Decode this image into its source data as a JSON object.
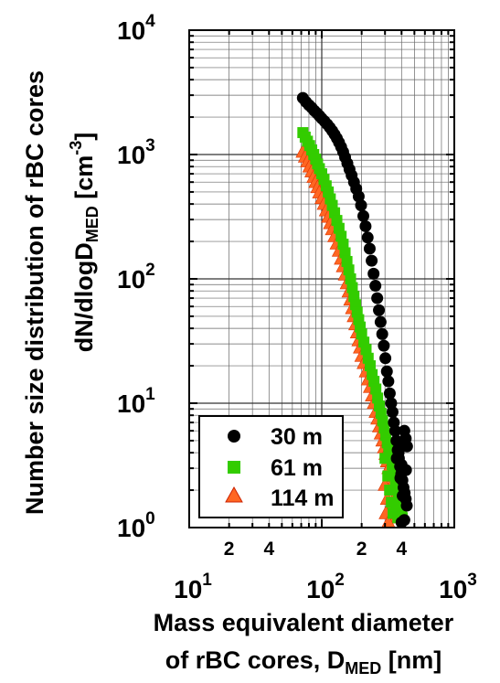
{
  "chart_data": {
    "type": "scatter",
    "xlabel": {
      "line1": "Mass equivalent diameter",
      "line2_prefix": "of rBC cores, D",
      "line2_sub": "MED",
      "line2_suffix": " [nm]"
    },
    "ylabel": {
      "line1": "Number size distribution of rBC cores",
      "line2_prefix": "dN/dlogD",
      "line2_sub": "MED",
      "line2_suffix": " [cm",
      "line2_sup": "-3",
      "line2_end": "]"
    },
    "x_scale": "log",
    "y_scale": "log",
    "xlim": [
      10,
      1000
    ],
    "ylim": [
      1,
      10000
    ],
    "x_major_ticks": [
      {
        "base": "10",
        "exp": "1"
      },
      {
        "base": "10",
        "exp": "2"
      },
      {
        "base": "10",
        "exp": "3"
      }
    ],
    "x_minor_labels": [
      "2",
      "4",
      "2",
      "4"
    ],
    "y_major_ticks": [
      {
        "base": "10",
        "exp": "0"
      },
      {
        "base": "10",
        "exp": "1"
      },
      {
        "base": "10",
        "exp": "2"
      },
      {
        "base": "10",
        "exp": "3"
      },
      {
        "base": "10",
        "exp": "4"
      }
    ],
    "grid": true,
    "legend_position": "bottom-left",
    "series": [
      {
        "name": "30 m",
        "marker": "circle",
        "color": "#000000",
        "points": [
          [
            72,
            2850
          ],
          [
            76,
            2650
          ],
          [
            80,
            2500
          ],
          [
            84,
            2380
          ],
          [
            88,
            2250
          ],
          [
            92,
            2150
          ],
          [
            96,
            2050
          ],
          [
            100,
            1950
          ],
          [
            105,
            1850
          ],
          [
            110,
            1750
          ],
          [
            115,
            1650
          ],
          [
            120,
            1550
          ],
          [
            125,
            1450
          ],
          [
            130,
            1350
          ],
          [
            135,
            1250
          ],
          [
            140,
            1150
          ],
          [
            145,
            1050
          ],
          [
            150,
            950
          ],
          [
            156,
            850
          ],
          [
            162,
            760
          ],
          [
            168,
            680
          ],
          [
            175,
            600
          ],
          [
            182,
            530
          ],
          [
            190,
            460
          ],
          [
            198,
            390
          ],
          [
            206,
            320
          ],
          [
            214,
            265
          ],
          [
            222,
            215
          ],
          [
            230,
            175
          ],
          [
            238,
            140
          ],
          [
            246,
            110
          ],
          [
            254,
            88
          ],
          [
            262,
            70
          ],
          [
            270,
            56
          ],
          [
            278,
            45
          ],
          [
            286,
            36
          ],
          [
            294,
            29
          ],
          [
            302,
            23
          ],
          [
            310,
            18
          ],
          [
            318,
            15
          ],
          [
            326,
            12
          ],
          [
            334,
            10
          ],
          [
            342,
            8.5
          ],
          [
            350,
            7.0
          ],
          [
            358,
            6.0
          ],
          [
            366,
            5.0
          ],
          [
            374,
            4.2
          ],
          [
            382,
            3.6
          ],
          [
            390,
            3.1
          ],
          [
            398,
            2.7
          ],
          [
            406,
            2.4
          ],
          [
            414,
            2.1
          ],
          [
            422,
            1.9
          ],
          [
            430,
            1.7
          ],
          [
            438,
            1.5
          ],
          [
            368,
            3.6
          ],
          [
            380,
            4.0
          ],
          [
            392,
            2.5
          ],
          [
            400,
            3.2
          ],
          [
            410,
            4.6
          ],
          [
            420,
            6.0
          ],
          [
            430,
            5.2
          ],
          [
            440,
            4.5
          ],
          [
            400,
            1.1
          ],
          [
            420,
            1.15
          ],
          [
            408,
            1.8
          ],
          [
            432,
            2.9
          ]
        ]
      },
      {
        "name": "61 m",
        "marker": "square",
        "color": "#33cc00",
        "points": [
          [
            72,
            1500
          ],
          [
            75,
            1380
          ],
          [
            78,
            1280
          ],
          [
            81,
            1180
          ],
          [
            84,
            1090
          ],
          [
            87,
            1000
          ],
          [
            90,
            920
          ],
          [
            93,
            840
          ],
          [
            96,
            770
          ],
          [
            100,
            700
          ],
          [
            104,
            630
          ],
          [
            108,
            560
          ],
          [
            112,
            500
          ],
          [
            116,
            440
          ],
          [
            120,
            390
          ],
          [
            125,
            340
          ],
          [
            130,
            295
          ],
          [
            135,
            255
          ],
          [
            140,
            220
          ],
          [
            145,
            190
          ],
          [
            150,
            162
          ],
          [
            155,
            138
          ],
          [
            160,
            118
          ],
          [
            165,
            100
          ],
          [
            170,
            85
          ],
          [
            175,
            72
          ],
          [
            180,
            62
          ],
          [
            185,
            54
          ],
          [
            190,
            47
          ],
          [
            195,
            41
          ],
          [
            200,
            36
          ],
          [
            208,
            31
          ],
          [
            216,
            27
          ],
          [
            224,
            23
          ],
          [
            232,
            20
          ],
          [
            240,
            17
          ],
          [
            248,
            15
          ],
          [
            256,
            13
          ],
          [
            264,
            11
          ],
          [
            272,
            9.5
          ],
          [
            280,
            8.3
          ],
          [
            288,
            7.2
          ],
          [
            296,
            6.3
          ],
          [
            304,
            5.5
          ],
          [
            312,
            4.8
          ],
          [
            320,
            4.2
          ],
          [
            330,
            3.7
          ],
          [
            340,
            3.2
          ],
          [
            350,
            2.8
          ],
          [
            360,
            2.4
          ],
          [
            370,
            2.1
          ],
          [
            380,
            1.8
          ],
          [
            390,
            1.6
          ],
          [
            400,
            1.4
          ],
          [
            300,
            3.6
          ],
          [
            315,
            2.6
          ],
          [
            325,
            2.0
          ],
          [
            335,
            1.6
          ],
          [
            345,
            1.3
          ],
          [
            360,
            1.5
          ],
          [
            375,
            1.2
          ],
          [
            385,
            2.2
          ],
          [
            405,
            1.2
          ]
        ]
      },
      {
        "name": "114 m",
        "marker": "triangle",
        "color": "#ff6622",
        "points": [
          [
            72,
            1050
          ],
          [
            75,
            960
          ],
          [
            78,
            880
          ],
          [
            81,
            800
          ],
          [
            84,
            730
          ],
          [
            87,
            660
          ],
          [
            90,
            600
          ],
          [
            93,
            545
          ],
          [
            96,
            495
          ],
          [
            100,
            445
          ],
          [
            104,
            400
          ],
          [
            108,
            355
          ],
          [
            112,
            315
          ],
          [
            116,
            280
          ],
          [
            120,
            250
          ],
          [
            125,
            220
          ],
          [
            130,
            192
          ],
          [
            135,
            168
          ],
          [
            140,
            145
          ],
          [
            145,
            126
          ],
          [
            150,
            108
          ],
          [
            155,
            92
          ],
          [
            160,
            79
          ],
          [
            165,
            68
          ],
          [
            170,
            58
          ],
          [
            175,
            50
          ],
          [
            180,
            43
          ],
          [
            185,
            37
          ],
          [
            190,
            32
          ],
          [
            195,
            28
          ],
          [
            200,
            24
          ],
          [
            208,
            21
          ],
          [
            216,
            18
          ],
          [
            224,
            15.5
          ],
          [
            232,
            13.5
          ],
          [
            240,
            11.5
          ],
          [
            248,
            10
          ],
          [
            256,
            8.5
          ],
          [
            264,
            7.5
          ],
          [
            272,
            6.5
          ],
          [
            280,
            5.7
          ],
          [
            288,
            5.0
          ],
          [
            296,
            4.4
          ],
          [
            304,
            3.9
          ],
          [
            312,
            3.4
          ],
          [
            320,
            3.0
          ],
          [
            330,
            2.6
          ],
          [
            340,
            2.3
          ],
          [
            350,
            2.0
          ],
          [
            360,
            1.8
          ],
          [
            370,
            1.6
          ],
          [
            380,
            1.45
          ],
          [
            390,
            1.3
          ],
          [
            400,
            1.2
          ],
          [
            300,
            2.2
          ],
          [
            312,
            1.7
          ],
          [
            322,
            1.4
          ],
          [
            334,
            1.2
          ],
          [
            305,
            1.3
          ],
          [
            318,
            1.1
          ],
          [
            400,
            1.6
          ]
        ]
      }
    ]
  }
}
